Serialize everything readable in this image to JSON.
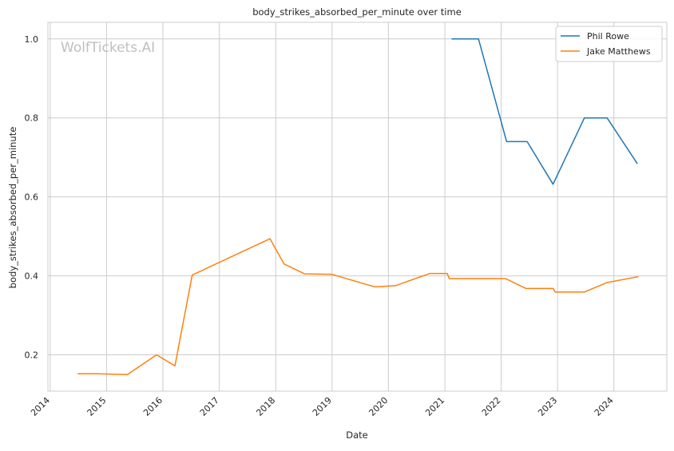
{
  "chart_data": {
    "type": "line",
    "title": "body_strikes_absorbed_per_minute over time",
    "xlabel": "Date",
    "ylabel": "body_strikes_absorbed_per_minute",
    "watermark": "WolfTickets.AI",
    "x_ticks": [
      "2014",
      "2015",
      "2016",
      "2017",
      "2018",
      "2019",
      "2020",
      "2021",
      "2022",
      "2023",
      "2024"
    ],
    "y_ticks": [
      "0.2",
      "0.4",
      "0.6",
      "0.8",
      "1.0"
    ],
    "xlim": [
      "2013-12-17",
      "2024-12-09"
    ],
    "ylim": [
      0.108,
      1.042
    ],
    "grid": true,
    "legend_position": "top-right",
    "series": [
      {
        "name": "Phil Rowe",
        "color": "#1f77b4",
        "points": [
          [
            "2021-02-13",
            1.0
          ],
          [
            "2021-08-07",
            1.0
          ],
          [
            "2022-02-05",
            0.74
          ],
          [
            "2022-06-18",
            0.74
          ],
          [
            "2022-12-03",
            0.632
          ],
          [
            "2023-06-24",
            0.8
          ],
          [
            "2023-11-18",
            0.8
          ],
          [
            "2024-06-01",
            0.684
          ]
        ]
      },
      {
        "name": "Jake Matthews",
        "color": "#ff7f0e",
        "points": [
          [
            "2014-06-28",
            0.152
          ],
          [
            "2014-11-08",
            0.152
          ],
          [
            "2015-05-16",
            0.15
          ],
          [
            "2015-11-21",
            0.2
          ],
          [
            "2016-03-19",
            0.172
          ],
          [
            "2016-07-09",
            0.402
          ],
          [
            "2017-11-25",
            0.494
          ],
          [
            "2018-02-24",
            0.43
          ],
          [
            "2018-07-07",
            0.405
          ],
          [
            "2018-12-29",
            0.404
          ],
          [
            "2019-10-05",
            0.372
          ],
          [
            "2020-02-15",
            0.375
          ],
          [
            "2020-09-26",
            0.406
          ],
          [
            "2021-01-16",
            0.406
          ],
          [
            "2021-01-30",
            0.393
          ],
          [
            "2022-01-29",
            0.393
          ],
          [
            "2022-06-11",
            0.368
          ],
          [
            "2022-12-03",
            0.368
          ],
          [
            "2022-12-17",
            0.359
          ],
          [
            "2023-06-24",
            0.359
          ],
          [
            "2023-08-05",
            0.366
          ],
          [
            "2023-11-18",
            0.383
          ],
          [
            "2024-06-08",
            0.398
          ]
        ]
      }
    ]
  }
}
